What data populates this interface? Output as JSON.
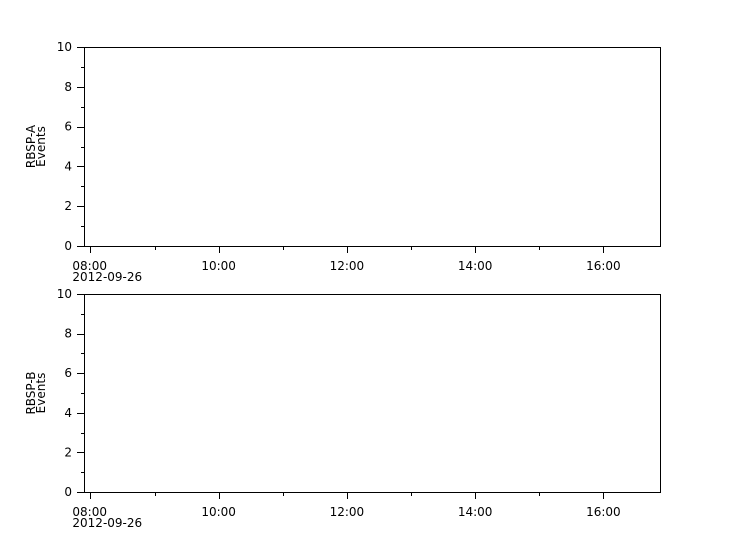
{
  "chart_data": [
    {
      "type": "line",
      "ylabel_lines": [
        "RBSP-A",
        "Events"
      ],
      "ylim": [
        0,
        10
      ],
      "yticks": [
        "0",
        "2",
        "4",
        "6",
        "8",
        "10"
      ],
      "xlim": [
        "2012-09-26 07:54",
        "2012-09-26 16:53"
      ],
      "xticks": [
        "08:00",
        "10:00",
        "12:00",
        "14:00",
        "16:00"
      ],
      "xdate_label": "2012-09-26",
      "grid": false,
      "series": []
    },
    {
      "type": "line",
      "ylabel_lines": [
        "RBSP-B",
        "Events"
      ],
      "ylim": [
        0,
        10
      ],
      "yticks": [
        "0",
        "2",
        "4",
        "6",
        "8",
        "10"
      ],
      "xlim": [
        "2012-09-26 07:54",
        "2012-09-26 16:53"
      ],
      "xticks": [
        "08:00",
        "10:00",
        "12:00",
        "14:00",
        "16:00"
      ],
      "xdate_label": "2012-09-26",
      "grid": false,
      "series": []
    }
  ]
}
